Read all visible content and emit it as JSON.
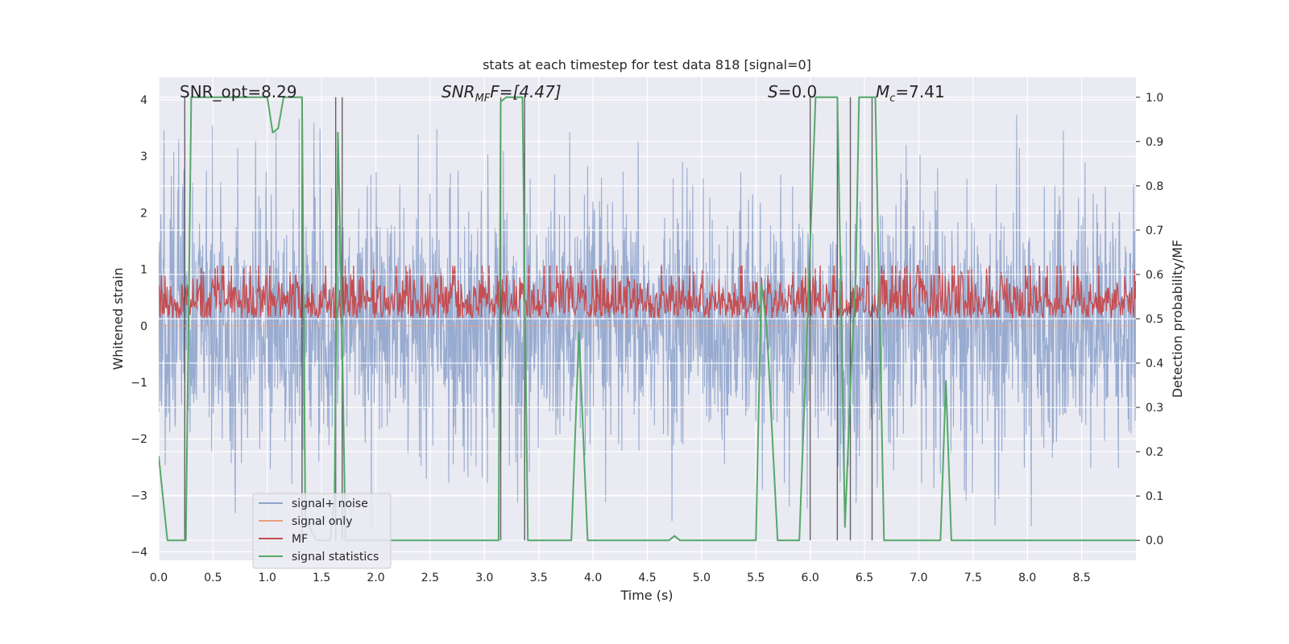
{
  "chart_data": {
    "type": "line",
    "title": "stats at each timestep for test data 818 [signal=0]",
    "xlabel": "Time (s)",
    "ylabel": "Whitened strain",
    "y2label": "Detection probability/MF",
    "xlim": [
      0,
      9.0
    ],
    "ylim": [
      -4.15,
      4.4
    ],
    "y2lim": [
      -0.045,
      1.045
    ],
    "xticks": [
      "0.0",
      "0.5",
      "1.0",
      "1.5",
      "2.0",
      "2.5",
      "3.0",
      "3.5",
      "4.0",
      "4.5",
      "5.0",
      "5.5",
      "6.0",
      "6.5",
      "7.0",
      "7.5",
      "8.0",
      "8.5"
    ],
    "yticks": [
      "−4",
      "−3",
      "−2",
      "−1",
      "0",
      "1",
      "2",
      "3",
      "4"
    ],
    "y2ticks": [
      "0.0",
      "0.1",
      "0.2",
      "0.3",
      "0.4",
      "0.5",
      "0.6",
      "0.7",
      "0.8",
      "0.9",
      "1.0"
    ],
    "grid": true,
    "legend_position": "lower-left",
    "annotations": {
      "snr_opt": "SNR_opt=8.29",
      "snr_mf_base": "SNR",
      "snr_mf_sub": "MF",
      "snr_mf_rest": "F=[4.47]",
      "s_label": "S",
      "s_rest": "=0.0",
      "mc_base": "M",
      "mc_sub": "c",
      "mc_rest": "=7.41"
    },
    "series": [
      {
        "name": "signal+ noise",
        "color": "#8fa4cc",
        "kind": "noise",
        "envelope": 2.5,
        "peak_max": 4.05,
        "trough_min": -3.6
      },
      {
        "name": "signal only",
        "color": "#e8a07e",
        "kind": "flat",
        "value": 0
      },
      {
        "name": "MF",
        "color": "#c44e52",
        "kind": "mf",
        "band": [
          0.5,
          0.62
        ]
      },
      {
        "name": "signal statistics",
        "color": "#55a868",
        "kind": "line",
        "axis": "right",
        "x": [
          0.0,
          0.08,
          0.15,
          0.25,
          0.3,
          0.35,
          0.5,
          1.0,
          1.05,
          1.1,
          1.15,
          1.2,
          1.25,
          1.32,
          1.35,
          1.45,
          1.58,
          1.62,
          1.65,
          1.68,
          1.72,
          1.75,
          1.82,
          2.0,
          2.5,
          3.0,
          3.13,
          3.15,
          3.2,
          3.35,
          3.4,
          3.45,
          3.5,
          3.8,
          3.87,
          3.95,
          4.0,
          4.5,
          4.7,
          4.75,
          4.8,
          5.0,
          5.5,
          5.55,
          5.6,
          5.7,
          5.8,
          5.9,
          6.05,
          6.1,
          6.25,
          6.28,
          6.32,
          6.38,
          6.42,
          6.45,
          6.5,
          6.6,
          6.68,
          6.75,
          7.0,
          7.2,
          7.25,
          7.3,
          7.35,
          8.0,
          8.5,
          9.0
        ],
        "y": [
          0.19,
          0.0,
          0.0,
          0.0,
          1.0,
          1.0,
          1.0,
          1.0,
          0.92,
          0.93,
          1.0,
          1.0,
          1.0,
          1.0,
          0.05,
          0.0,
          0.0,
          0.1,
          0.92,
          0.6,
          0.0,
          0.0,
          0.0,
          0.0,
          0.0,
          0.0,
          0.0,
          0.99,
          1.0,
          1.0,
          0.0,
          0.0,
          0.0,
          0.0,
          0.47,
          0.0,
          0.0,
          0.0,
          0.0,
          0.01,
          0.0,
          0.0,
          0.0,
          0.58,
          0.48,
          0.0,
          0.0,
          0.0,
          1.0,
          1.0,
          1.0,
          0.6,
          0.03,
          0.4,
          0.6,
          1.0,
          1.0,
          1.0,
          0.0,
          0.0,
          0.0,
          0.0,
          0.36,
          0.0,
          0.0,
          0.0,
          0.0,
          0.0
        ]
      },
      {
        "name": "marker lines",
        "color": "#333333",
        "kind": "vlines",
        "axis": "right",
        "x": [
          0.24,
          1.32,
          1.63,
          1.69,
          3.15,
          3.37,
          6.0,
          6.25,
          6.37,
          6.57
        ],
        "y_from": 0.0,
        "y_to": 1.0
      }
    ]
  }
}
